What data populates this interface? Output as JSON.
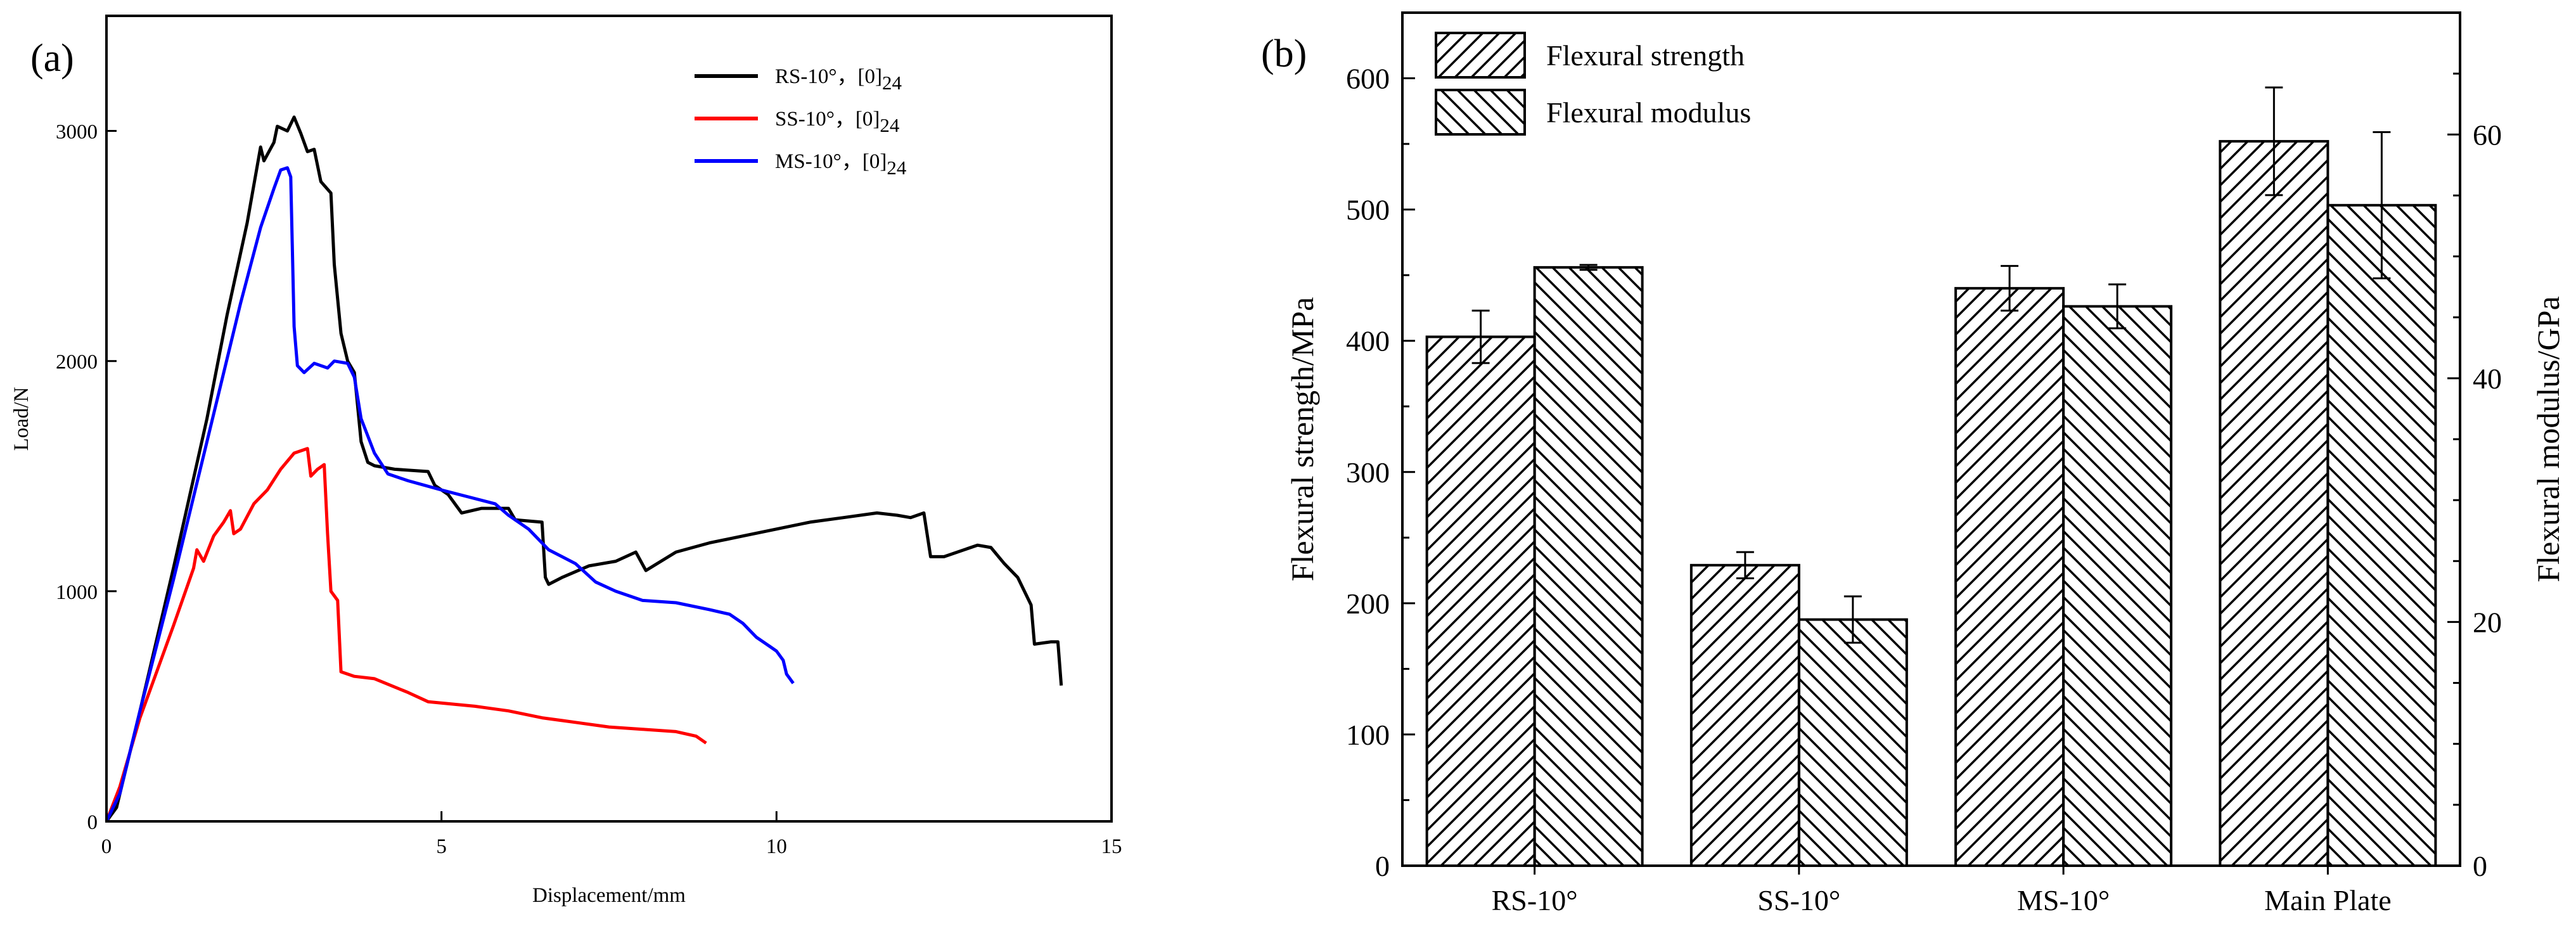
{
  "chart_data": [
    {
      "type": "line",
      "panel_label": "(a)",
      "title": "",
      "xlabel": "Displacement/mm",
      "ylabel": "Load/N",
      "xlim": [
        0,
        15
      ],
      "ylim": [
        0,
        3500
      ],
      "x_ticks": [
        0,
        5,
        10,
        15
      ],
      "x_tick_labels": [
        "0",
        "5",
        "10",
        "15"
      ],
      "y_ticks": [
        0,
        1000,
        2000,
        3000
      ],
      "y_tick_labels": [
        "0",
        "1000",
        "2000",
        "3000"
      ],
      "legend_position": "top-right",
      "series": [
        {
          "name": "RS-10°，[0]",
          "name_subscript": "24",
          "color": "#000000",
          "points": [
            [
              0,
              0
            ],
            [
              0.15,
              60
            ],
            [
              0.5,
              480
            ],
            [
              1,
              1100
            ],
            [
              1.5,
              1750
            ],
            [
              1.8,
              2200
            ],
            [
              2.1,
              2600
            ],
            [
              2.3,
              2930
            ],
            [
              2.35,
              2870
            ],
            [
              2.5,
              2950
            ],
            [
              2.55,
              3020
            ],
            [
              2.7,
              3000
            ],
            [
              2.8,
              3060
            ],
            [
              2.9,
              2990
            ],
            [
              3.0,
              2910
            ],
            [
              3.1,
              2920
            ],
            [
              3.2,
              2780
            ],
            [
              3.35,
              2730
            ],
            [
              3.4,
              2420
            ],
            [
              3.5,
              2120
            ],
            [
              3.6,
              2000
            ],
            [
              3.7,
              1950
            ],
            [
              3.8,
              1650
            ],
            [
              3.9,
              1560
            ],
            [
              4.0,
              1545
            ],
            [
              4.3,
              1530
            ],
            [
              4.8,
              1520
            ],
            [
              4.9,
              1460
            ],
            [
              5.1,
              1420
            ],
            [
              5.2,
              1380
            ],
            [
              5.3,
              1340
            ],
            [
              5.6,
              1360
            ],
            [
              6.0,
              1360
            ],
            [
              6.1,
              1310
            ],
            [
              6.5,
              1300
            ],
            [
              6.55,
              1060
            ],
            [
              6.6,
              1030
            ],
            [
              6.8,
              1060
            ],
            [
              7.2,
              1110
            ],
            [
              7.6,
              1130
            ],
            [
              7.9,
              1170
            ],
            [
              8.05,
              1090
            ],
            [
              8.5,
              1170
            ],
            [
              9.0,
              1210
            ],
            [
              9.5,
              1240
            ],
            [
              10.0,
              1270
            ],
            [
              10.5,
              1300
            ],
            [
              11.0,
              1320
            ],
            [
              11.5,
              1340
            ],
            [
              11.8,
              1330
            ],
            [
              12.0,
              1320
            ],
            [
              12.2,
              1340
            ],
            [
              12.3,
              1150
            ],
            [
              12.5,
              1150
            ],
            [
              13.0,
              1200
            ],
            [
              13.2,
              1190
            ],
            [
              13.4,
              1120
            ],
            [
              13.6,
              1060
            ],
            [
              13.8,
              940
            ],
            [
              13.85,
              770
            ],
            [
              14.1,
              780
            ],
            [
              14.2,
              780
            ],
            [
              14.25,
              590
            ]
          ]
        },
        {
          "name": "SS-10°，[0]",
          "name_subscript": "24",
          "color": "#ff0000",
          "points": [
            [
              0,
              0
            ],
            [
              0.2,
              150
            ],
            [
              0.5,
              450
            ],
            [
              1,
              850
            ],
            [
              1.3,
              1100
            ],
            [
              1.35,
              1180
            ],
            [
              1.45,
              1130
            ],
            [
              1.6,
              1240
            ],
            [
              1.75,
              1300
            ],
            [
              1.85,
              1350
            ],
            [
              1.9,
              1250
            ],
            [
              2.0,
              1270
            ],
            [
              2.2,
              1380
            ],
            [
              2.4,
              1440
            ],
            [
              2.6,
              1530
            ],
            [
              2.8,
              1600
            ],
            [
              3.0,
              1620
            ],
            [
              3.05,
              1500
            ],
            [
              3.15,
              1530
            ],
            [
              3.25,
              1550
            ],
            [
              3.3,
              1250
            ],
            [
              3.35,
              1000
            ],
            [
              3.45,
              960
            ],
            [
              3.5,
              650
            ],
            [
              3.7,
              630
            ],
            [
              4.0,
              620
            ],
            [
              4.5,
              560
            ],
            [
              4.8,
              520
            ],
            [
              5.5,
              500
            ],
            [
              6.0,
              480
            ],
            [
              6.5,
              450
            ],
            [
              7.0,
              430
            ],
            [
              7.5,
              410
            ],
            [
              8.0,
              400
            ],
            [
              8.5,
              390
            ],
            [
              8.8,
              370
            ],
            [
              8.95,
              340
            ]
          ]
        },
        {
          "name": "MS-10°，[0]",
          "name_subscript": "24",
          "color": "#0000ff",
          "points": [
            [
              0,
              0
            ],
            [
              0.2,
              120
            ],
            [
              0.5,
              480
            ],
            [
              1,
              1050
            ],
            [
              1.5,
              1650
            ],
            [
              2.0,
              2250
            ],
            [
              2.3,
              2580
            ],
            [
              2.5,
              2750
            ],
            [
              2.6,
              2830
            ],
            [
              2.7,
              2840
            ],
            [
              2.75,
              2800
            ],
            [
              2.8,
              2150
            ],
            [
              2.85,
              1980
            ],
            [
              2.95,
              1950
            ],
            [
              3.1,
              1990
            ],
            [
              3.3,
              1970
            ],
            [
              3.4,
              2000
            ],
            [
              3.6,
              1990
            ],
            [
              3.7,
              1930
            ],
            [
              3.8,
              1750
            ],
            [
              4.0,
              1600
            ],
            [
              4.2,
              1510
            ],
            [
              4.5,
              1480
            ],
            [
              5.0,
              1440
            ],
            [
              5.4,
              1410
            ],
            [
              5.8,
              1380
            ],
            [
              6.0,
              1330
            ],
            [
              6.3,
              1270
            ],
            [
              6.6,
              1180
            ],
            [
              7.0,
              1120
            ],
            [
              7.3,
              1040
            ],
            [
              7.6,
              1000
            ],
            [
              8.0,
              960
            ],
            [
              8.5,
              950
            ],
            [
              9.0,
              920
            ],
            [
              9.3,
              900
            ],
            [
              9.5,
              860
            ],
            [
              9.7,
              800
            ],
            [
              9.9,
              760
            ],
            [
              10.0,
              740
            ],
            [
              10.1,
              700
            ],
            [
              10.15,
              640
            ],
            [
              10.25,
              600
            ]
          ]
        }
      ]
    },
    {
      "type": "bar",
      "panel_label": "(b)",
      "title": "",
      "xlabel": "",
      "ylabel": "Flexural strength/MPa",
      "ylabel_right": "Flexural modulus/GPa",
      "ylim": [
        0,
        650
      ],
      "ylim_right": [
        0,
        70
      ],
      "y_ticks": [
        0,
        100,
        200,
        300,
        400,
        500,
        600
      ],
      "y_tick_labels": [
        "0",
        "100",
        "200",
        "300",
        "400",
        "500",
        "600"
      ],
      "y_ticks_right": [
        0,
        20,
        40,
        60
      ],
      "y_tick_labels_right": [
        "0",
        "20",
        "40",
        "60"
      ],
      "categories": [
        "RS-10°",
        "SS-10°",
        "MS-10°",
        "Main Plate"
      ],
      "legend_position": "top-left",
      "series": [
        {
          "name": "Flexural strength",
          "axis": "left",
          "hatch": "forward-diagonal",
          "values": [
            403,
            229,
            440,
            552
          ],
          "errors": [
            20,
            10,
            17,
            41
          ]
        },
        {
          "name": "Flexural modulus",
          "axis": "right",
          "hatch": "back-diagonal",
          "values": [
            49.1,
            20.2,
            45.9,
            54.2
          ],
          "errors": [
            0.2,
            1.9,
            1.8,
            6.0
          ]
        }
      ]
    }
  ]
}
